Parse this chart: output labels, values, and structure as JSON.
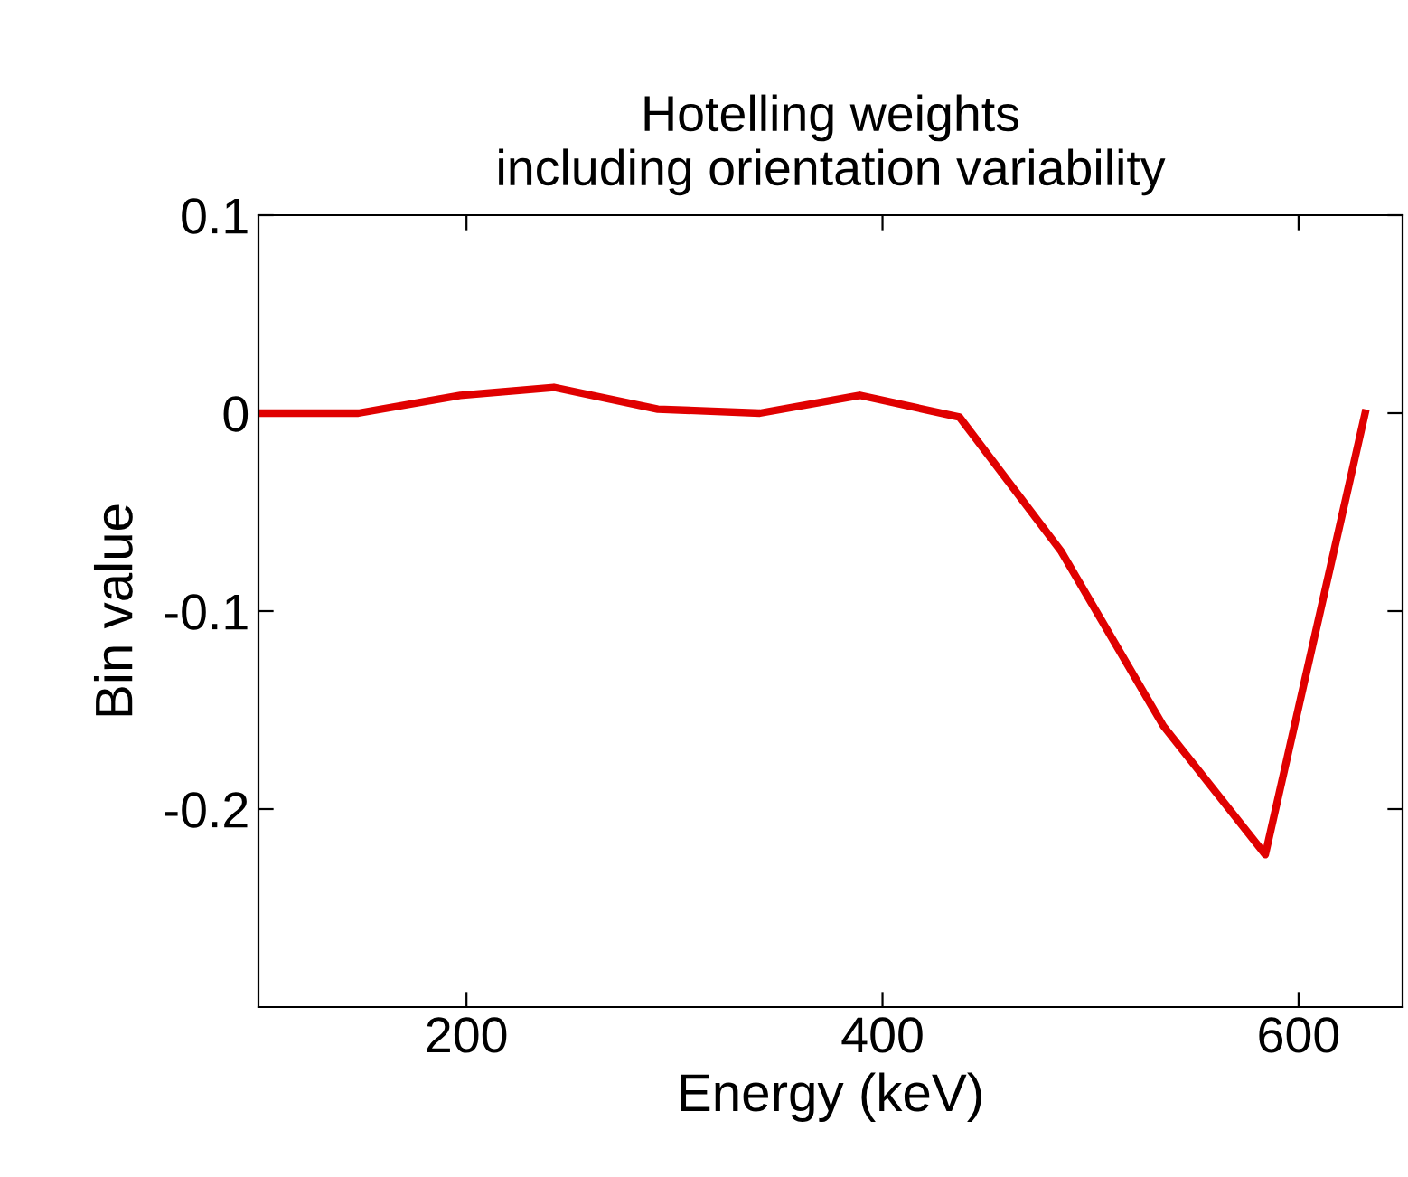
{
  "chart_data": {
    "type": "line",
    "title": "Hotelling weights\nincluding orientation variability",
    "xlabel": "Energy (keV)",
    "ylabel": "Bin value",
    "x": [
      100,
      148,
      197,
      242,
      292,
      341,
      389,
      437,
      486,
      535,
      584,
      632
    ],
    "series": [
      {
        "color": "#e00000",
        "values": [
          0,
          0,
          0.009,
          0.013,
          0.002,
          0,
          0.009,
          -0.002,
          -0.07,
          -0.158,
          -0.223,
          0
        ]
      }
    ],
    "xlim": [
      100,
      650
    ],
    "xticks": [
      200,
      400,
      600
    ],
    "ylim": [
      -0.3,
      0.1
    ],
    "yticks": [
      -0.2,
      -0.1,
      0,
      0.1
    ],
    "grid": false,
    "legend": false,
    "marker": "none",
    "line_style": "solid"
  }
}
